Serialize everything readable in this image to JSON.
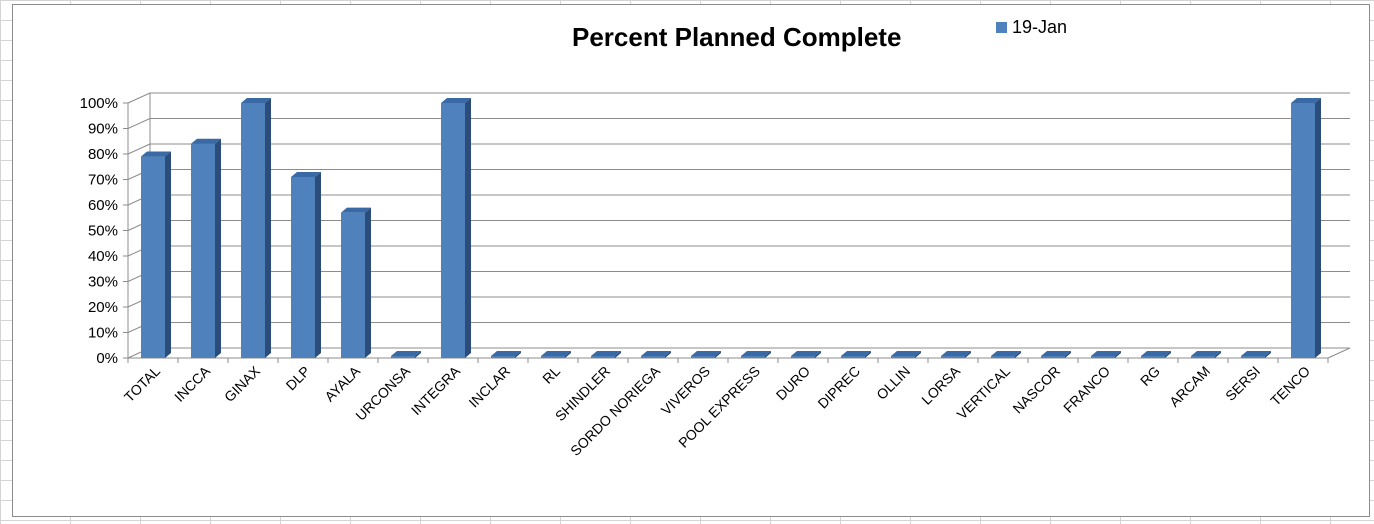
{
  "chart_data": {
    "type": "bar",
    "title": "Percent Planned Complete",
    "series": [
      {
        "name": "19-Jan",
        "values": [
          79,
          84,
          100,
          71,
          57,
          0,
          100,
          0,
          0,
          0,
          0,
          0,
          0,
          0,
          0,
          0,
          0,
          0,
          0,
          0,
          0,
          0,
          0,
          100
        ]
      }
    ],
    "categories": [
      "TOTAL",
      "INCCA",
      "GINAX",
      "DLP",
      "AYALA",
      "URCONSA",
      "INTEGRA",
      "INCLAR",
      "RL",
      "SHINDLER",
      "SORDO NORIEGA",
      "VIVEROS",
      "POOL EXPRESS",
      "DURO",
      "DIPREC",
      "OLLIN",
      "LORSA",
      "VERTICAL",
      "NASCOR",
      "FRANCO",
      "RG",
      "ARCAM",
      "SERSI",
      "TENCO"
    ],
    "yticks": [
      "0%",
      "10%",
      "20%",
      "30%",
      "40%",
      "50%",
      "60%",
      "70%",
      "80%",
      "90%",
      "100%"
    ],
    "ylim": [
      0,
      100
    ],
    "grid": true,
    "legend_position": "top-right",
    "bar_color": "#4f81bd"
  }
}
